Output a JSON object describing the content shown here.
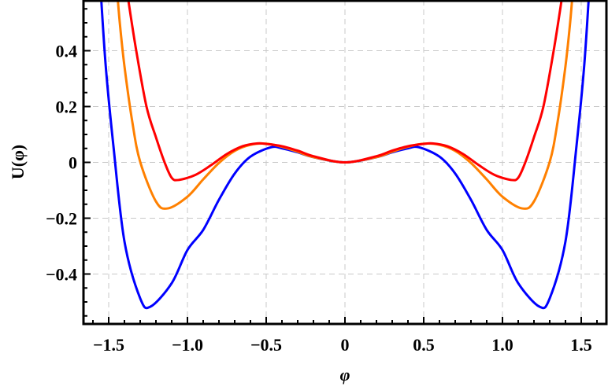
{
  "chart_data": {
    "type": "line",
    "title": "",
    "xlabel": "φ",
    "ylabel": "U(φ)",
    "xlim": [
      -1.66,
      1.66
    ],
    "ylim": [
      -0.578,
      0.582
    ],
    "grid": true,
    "legend": null,
    "xticks": [
      -1.5,
      -1.0,
      -0.5,
      0,
      0.5,
      1.0,
      1.5
    ],
    "xtick_labels": [
      "−1.5",
      "−1.0",
      "−0.5",
      "0",
      "0.5",
      "1.0",
      "1.5"
    ],
    "yticks": [
      -0.4,
      -0.2,
      0,
      0.2,
      0.4
    ],
    "ytick_labels": [
      "−0.4",
      "−0.2",
      "0",
      "0.2",
      "0.4"
    ],
    "symmetric_about_zero": true,
    "series": [
      {
        "name": "blue",
        "color": "#0000ff",
        "x": [
          0,
          0.2,
          0.3,
          0.4,
          0.47,
          0.6,
          0.7,
          0.8,
          0.9,
          1.0,
          1.1,
          1.235,
          1.3,
          1.4,
          1.47,
          1.52,
          1.56
        ],
        "y": [
          0,
          0.0185,
          0.036,
          0.0504,
          0.054,
          0.0205,
          -0.04,
          -0.134,
          -0.242,
          -0.314,
          -0.433,
          -0.517,
          -0.487,
          -0.283,
          0.059,
          0.354,
          0.701
        ]
      },
      {
        "name": "orange",
        "color": "#ff8000",
        "x": [
          0,
          0.2,
          0.3,
          0.4,
          0.5,
          0.6,
          0.7,
          0.8,
          0.9,
          1.0,
          1.125,
          1.2,
          1.3,
          1.35,
          1.4,
          1.43,
          1.45
        ],
        "y": [
          0,
          0.019,
          0.038,
          0.056,
          0.067,
          0.063,
          0.041,
          -0.002,
          -0.061,
          -0.123,
          -0.165,
          -0.14,
          0.002,
          0.145,
          0.345,
          0.503,
          0.64
        ]
      },
      {
        "name": "red",
        "color": "#ff0000",
        "x": [
          0,
          0.2,
          0.3,
          0.4,
          0.5,
          0.555,
          0.65,
          0.75,
          0.85,
          0.95,
          1.055,
          1.1,
          1.145,
          1.2,
          1.26,
          1.325,
          1.375,
          1.4
        ],
        "y": [
          0,
          0.022,
          0.042,
          0.058,
          0.066,
          0.068,
          0.058,
          0.03,
          -0.01,
          -0.045,
          -0.063,
          -0.055,
          0.0,
          0.09,
          0.2,
          0.4,
          0.58,
          0.68
        ]
      }
    ]
  },
  "axes": {
    "x_title": "φ",
    "y_title": "U(φ)"
  }
}
